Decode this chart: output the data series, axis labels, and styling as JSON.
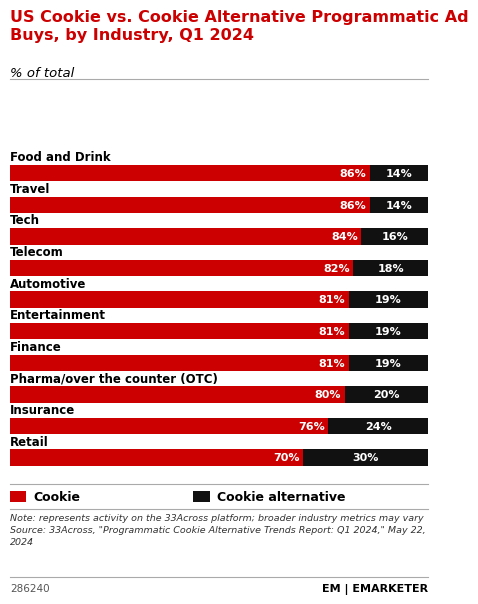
{
  "title": "US Cookie vs. Cookie Alternative Programmatic Ad\nBuys, by Industry, Q1 2024",
  "subtitle": "% of total",
  "categories": [
    "Food and Drink",
    "Travel",
    "Tech",
    "Telecom",
    "Automotive",
    "Entertainment",
    "Finance",
    "Pharma/over the counter (OTC)",
    "Insurance",
    "Retail"
  ],
  "cookie_pct": [
    86,
    86,
    84,
    82,
    81,
    81,
    81,
    80,
    76,
    70
  ],
  "alt_pct": [
    14,
    14,
    16,
    18,
    19,
    19,
    19,
    20,
    24,
    30
  ],
  "cookie_color": "#cc0000",
  "alt_color": "#111111",
  "background_color": "#ffffff",
  "title_color": "#cc0000",
  "subtitle_color": "#000000",
  "category_color": "#000000",
  "bar_label_color": "#ffffff",
  "note_text": "Note: represents activity on the 33Across platform; broader industry metrics may vary\nSource: 33Across, \"Programmatic Cookie Alternative Trends Report: Q1 2024,\" May 22,\n2024",
  "source_id": "286240",
  "legend_cookie": "Cookie",
  "legend_alt": "Cookie alternative",
  "bar_height": 0.52
}
